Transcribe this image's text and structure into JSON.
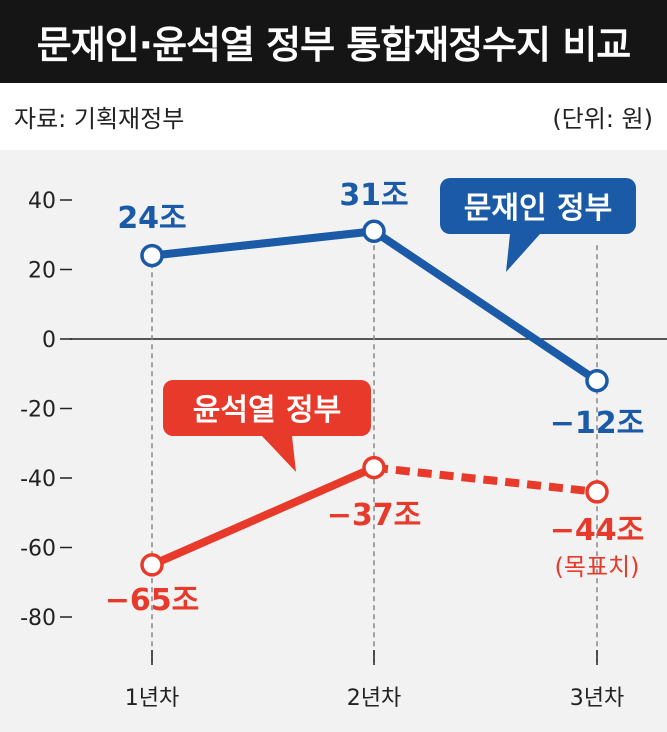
{
  "header": {
    "title": "문재인·윤석열 정부 통합재정수지 비교",
    "source": "자료: 기획재정부",
    "unit": "(단위: 원)"
  },
  "colors": {
    "moon": "#1a5aa6",
    "yoon": "#e83a2a",
    "background": "#f2f2f2",
    "title_bar": "#151515"
  },
  "chart_data": {
    "type": "line",
    "title": "문재인·윤석열 정부 통합재정수지 비교",
    "xlabel": "",
    "ylabel": "",
    "categories": [
      "1년차",
      "2년차",
      "3년차"
    ],
    "y_ticks": [
      "40",
      "20",
      "0",
      "-20",
      "-40",
      "-60",
      "-80"
    ],
    "ylim": [
      -80,
      40
    ],
    "series": [
      {
        "name": "문재인 정부",
        "values": [
          24,
          31,
          -12
        ],
        "labels": [
          "24조",
          "31조",
          "−12조"
        ],
        "color": "#1a5aa6",
        "dashed_last_segment": false
      },
      {
        "name": "윤석열 정부",
        "values": [
          -65,
          -37,
          -44
        ],
        "labels": [
          "−65조",
          "−37조",
          "−44조"
        ],
        "color": "#e83a2a",
        "dashed_last_segment": true,
        "note": "(목표치)"
      }
    ],
    "legend_position": "callouts"
  }
}
